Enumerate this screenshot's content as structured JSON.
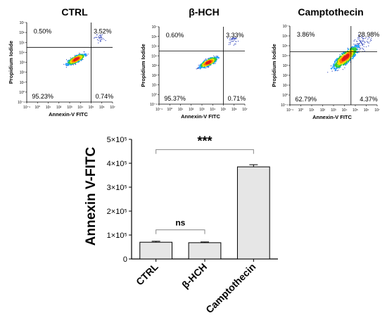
{
  "chart_data": [
    {
      "type": "scatter",
      "title": "CTRL",
      "xlabel": "Annexin-V FITC",
      "ylabel": "Propidium Iodide",
      "axis_scale": "log",
      "x_ticks": [
        "10⁻¹",
        "10⁰",
        "10¹",
        "10²",
        "10³",
        "10⁴",
        "10⁵",
        "10⁶",
        "10⁷"
      ],
      "y_ticks": [
        "10⁻¹",
        "10⁰",
        "10¹",
        "10²",
        "10³",
        "10⁴",
        "10⁵",
        "10⁶",
        "10⁷"
      ],
      "quadrants": {
        "upper_left": "0.50%",
        "upper_right": "3.52%",
        "lower_left": "95.23%",
        "lower_right": "0.74%"
      },
      "gate_log": {
        "x": 5.0,
        "y": 4.5
      },
      "population_log": {
        "x": 3.6,
        "y": 3.3,
        "spread": 0.8,
        "angle": 30,
        "events": 400
      },
      "upper_right_log": {
        "x": 5.8,
        "y": 5.5,
        "spread": 0.5,
        "events": 35
      }
    },
    {
      "type": "scatter",
      "title": "β-HCH",
      "xlabel": "Annexin-V FITC",
      "ylabel": "Propidium Iodide",
      "axis_scale": "log",
      "x_ticks": [
        "10⁻¹",
        "10⁰",
        "10¹",
        "10²",
        "10³",
        "10⁴",
        "10⁵",
        "10⁶",
        "10⁷"
      ],
      "y_ticks": [
        "10⁻¹",
        "10⁰",
        "10¹",
        "10²",
        "10³",
        "10⁴",
        "10⁵",
        "10⁶",
        "10⁷"
      ],
      "quadrants": {
        "upper_left": "0.60%",
        "upper_right": "3.33%",
        "lower_left": "95.37%",
        "lower_right": "0.71%"
      },
      "gate_log": {
        "x": 5.0,
        "y": 4.5
      },
      "population_log": {
        "x": 3.6,
        "y": 3.3,
        "spread": 0.8,
        "angle": 30,
        "events": 400
      },
      "upper_right_log": {
        "x": 5.8,
        "y": 5.6,
        "spread": 0.5,
        "events": 35
      }
    },
    {
      "type": "scatter",
      "title": "Camptothecin",
      "xlabel": "Annexin-V FITC",
      "ylabel": "Propidium Iodide",
      "axis_scale": "log",
      "x_ticks": [
        "10⁻¹",
        "10⁰",
        "10¹",
        "10²",
        "10³",
        "10⁴",
        "10⁵",
        "10⁶",
        "10⁷"
      ],
      "y_ticks": [
        "10⁻¹",
        "10⁰",
        "10¹",
        "10²",
        "10³",
        "10⁴",
        "10⁵",
        "10⁶",
        "10⁷"
      ],
      "quadrants": {
        "upper_left": "3.86%",
        "upper_right": "28.98%",
        "lower_left": "62.79%",
        "lower_right": "4.37%"
      },
      "gate_log": {
        "x": 4.6,
        "y": 4.4
      },
      "population_log": {
        "x": 4.1,
        "y": 3.8,
        "spread": 1.3,
        "angle": 45,
        "events": 520
      },
      "upper_right_log": {
        "x": 5.6,
        "y": 5.3,
        "spread": 0.7,
        "events": 80
      }
    },
    {
      "type": "bar",
      "categories": [
        "CTRL",
        "β-HCH",
        "Camptothecin"
      ],
      "values": [
        70000,
        68000,
        385000
      ],
      "errors": [
        4000,
        3000,
        9000
      ],
      "ylabel": "Annexin V-FITC",
      "ylim": [
        0,
        500000
      ],
      "y_ticks": [
        {
          "value": 0,
          "label": "0"
        },
        {
          "value": 100000,
          "label": "1×10⁵"
        },
        {
          "value": 200000,
          "label": "2×10⁵"
        },
        {
          "value": 300000,
          "label": "3×10⁵"
        },
        {
          "value": 400000,
          "label": "4×10⁵"
        },
        {
          "value": 500000,
          "label": "5×10⁵"
        }
      ],
      "bar_color": "#e6e6e6",
      "significance": [
        {
          "from": 0,
          "to": 1,
          "label": "ns"
        },
        {
          "from": 0,
          "to": 2,
          "label": "***"
        }
      ]
    }
  ]
}
